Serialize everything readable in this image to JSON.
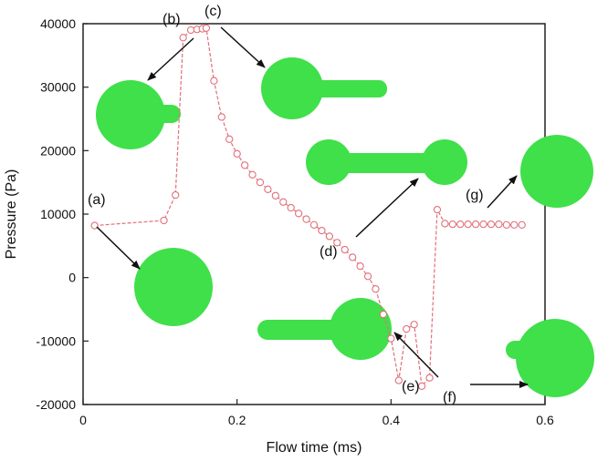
{
  "chart_data": {
    "type": "line",
    "title": "",
    "xlabel": "Flow time (ms)",
    "ylabel": "Pressure (Pa)",
    "xlim": [
      0,
      0.6
    ],
    "ylim": [
      -20000,
      40000
    ],
    "xticks": [
      "0",
      "0.2",
      "0.4",
      "0.6"
    ],
    "yticks": [
      "-20000",
      "-10000",
      "0",
      "10000",
      "20000",
      "30000",
      "40000"
    ],
    "grid": false,
    "series": [
      {
        "name": "",
        "color": "#e0707a",
        "marker": "circle-open",
        "x": [
          0.015,
          0.105,
          0.12,
          0.13,
          0.14,
          0.148,
          0.155,
          0.16,
          0.17,
          0.18,
          0.19,
          0.2,
          0.21,
          0.22,
          0.23,
          0.24,
          0.25,
          0.26,
          0.27,
          0.28,
          0.29,
          0.3,
          0.31,
          0.32,
          0.33,
          0.34,
          0.35,
          0.36,
          0.37,
          0.38,
          0.39,
          0.4,
          0.41,
          0.42,
          0.43,
          0.44,
          0.45,
          0.46,
          0.47,
          0.48,
          0.49,
          0.5,
          0.51,
          0.52,
          0.53,
          0.54,
          0.55,
          0.56,
          0.57
        ],
        "y": [
          8200,
          9000,
          13000,
          37800,
          39000,
          39100,
          39200,
          39300,
          31000,
          25300,
          21800,
          19500,
          17700,
          16200,
          15000,
          13900,
          12900,
          11900,
          11000,
          10100,
          9200,
          8300,
          7400,
          6500,
          5500,
          4400,
          3200,
          1800,
          200,
          -1800,
          -5800,
          -9600,
          -16200,
          -8100,
          -7400,
          -17100,
          -15800,
          10700,
          8500,
          8400,
          8400,
          8400,
          8400,
          8400,
          8400,
          8400,
          8300,
          8300,
          8300
        ]
      }
    ],
    "annotations": [
      {
        "label": "(a)",
        "point": [
          0.015,
          8200
        ],
        "shape": "sphere"
      },
      {
        "label": "(b)",
        "point": [
          0.13,
          37800
        ],
        "shape": "sphere-short-tail"
      },
      {
        "label": "(c)",
        "point": [
          0.16,
          39300
        ],
        "shape": "sphere-long-tail"
      },
      {
        "label": "(d)",
        "point": [
          0.32,
          6500
        ],
        "shape": "dumbbell"
      },
      {
        "label": "(e)",
        "point": [
          0.42,
          -16200
        ],
        "shape": "sphere-long-tail-left"
      },
      {
        "label": "(f)",
        "point": [
          0.45,
          -17100
        ],
        "shape": "sphere-short-tail-left"
      },
      {
        "label": "(g)",
        "point": [
          0.47,
          10700
        ],
        "shape": "sphere"
      }
    ]
  },
  "colors": {
    "series": "#e0707a",
    "droplet": "#3fe04a",
    "axis": "#222222",
    "arrow": "#111111"
  }
}
